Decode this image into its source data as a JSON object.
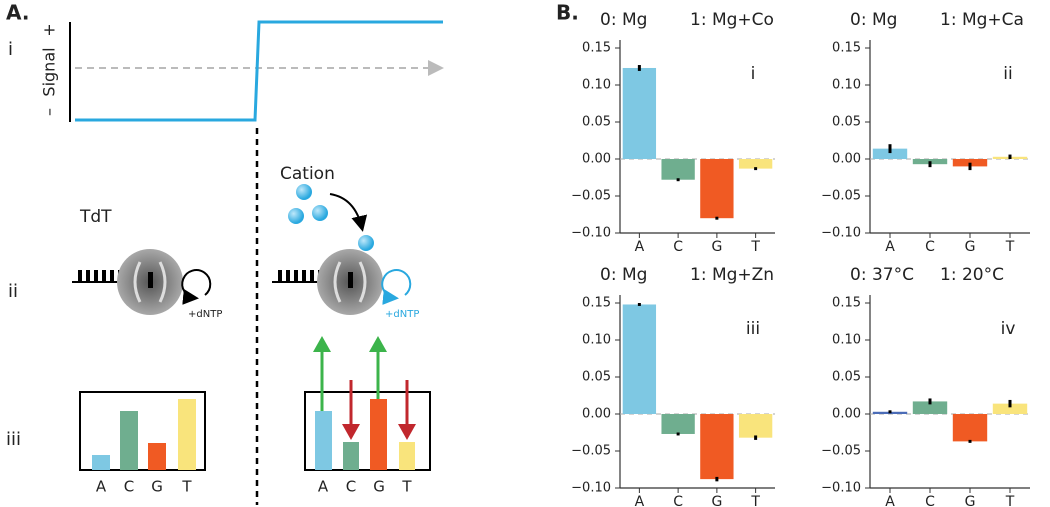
{
  "panel_a": {
    "label": "A.",
    "rows": [
      "i",
      "ii",
      "iii"
    ],
    "signal": "Signal",
    "plus": "+",
    "minus": "–",
    "enzyme": "TdT",
    "substrate": "+dNTP",
    "cation": "Cation",
    "bases": [
      "A",
      "C",
      "G",
      "T"
    ]
  },
  "panel_b": {
    "label": "B."
  },
  "chart_data": [
    {
      "type": "bar",
      "conditions": [
        "0: Mg",
        "1: Mg+Co"
      ],
      "label": "i",
      "categories": [
        "A",
        "C",
        "G",
        "T"
      ],
      "values": [
        0.123,
        -0.028,
        -0.08,
        -0.013
      ],
      "errors": [
        0.004,
        0.002,
        0.002,
        0.002
      ],
      "colors": [
        "#7ec8e3",
        "#6fae8f",
        "#f05a23",
        "#f9e47c"
      ],
      "ylim": [
        -0.1,
        0.15
      ],
      "yticks": [
        {
          "value": -0.1,
          "label": "−0.10"
        },
        {
          "value": -0.05,
          "label": "−0.05"
        },
        {
          "value": 0,
          "label": "0.00"
        },
        0.05,
        {
          "value": 0.1,
          "label": "0.10"
        },
        0.15
      ]
    },
    {
      "type": "bar",
      "conditions": [
        "0: Mg",
        "1: Mg+Ca"
      ],
      "label": "ii",
      "categories": [
        "A",
        "C",
        "G",
        "T"
      ],
      "values": [
        0.014,
        -0.007,
        -0.01,
        0.003
      ],
      "errors": [
        0.006,
        0.004,
        0.005,
        0.003
      ],
      "colors": [
        "#7ec8e3",
        "#6fae8f",
        "#f05a23",
        "#f9e47c"
      ],
      "ylim": [
        -0.1,
        0.15
      ],
      "yticks": [
        {
          "value": -0.1,
          "label": "−0.10"
        },
        {
          "value": -0.05,
          "label": "−0.05"
        },
        {
          "value": 0,
          "label": "0.00"
        },
        0.05,
        {
          "value": 0.1,
          "label": "0.10"
        },
        0.15
      ]
    },
    {
      "type": "bar",
      "conditions": [
        "0: Mg",
        "1: Mg+Zn"
      ],
      "label": "iii",
      "categories": [
        "A",
        "C",
        "G",
        "T"
      ],
      "values": [
        0.148,
        -0.027,
        -0.088,
        -0.032
      ],
      "errors": [
        0.002,
        0.002,
        0.003,
        0.003
      ],
      "colors": [
        "#7ec8e3",
        "#6fae8f",
        "#f05a23",
        "#f9e47c"
      ],
      "ylim": [
        -0.1,
        0.15
      ],
      "yticks": [
        {
          "value": -0.1,
          "label": "−0.10"
        },
        {
          "value": -0.05,
          "label": "−0.05"
        },
        {
          "value": 0,
          "label": "0.00"
        },
        0.05,
        {
          "value": 0.1,
          "label": "0.10"
        },
        0.15
      ]
    },
    {
      "type": "bar",
      "conditions": [
        "0: 37°C",
        "1: 20°C"
      ],
      "label": "iv",
      "categories": [
        "A",
        "C",
        "G",
        "T"
      ],
      "values": [
        0.003,
        0.017,
        -0.037,
        0.014
      ],
      "errors": [
        0.002,
        0.004,
        0.002,
        0.005
      ],
      "colors": [
        "#4b6cb7",
        "#6fae8f",
        "#f05a23",
        "#f9e47c"
      ],
      "ylim": [
        -0.1,
        0.15
      ],
      "yticks": [
        {
          "value": -0.1,
          "label": "−0.10"
        },
        {
          "value": -0.05,
          "label": "−0.05"
        },
        {
          "value": 0,
          "label": "0.00"
        },
        0.05,
        {
          "value": 0.1,
          "label": "0.10"
        },
        0.15
      ]
    }
  ]
}
